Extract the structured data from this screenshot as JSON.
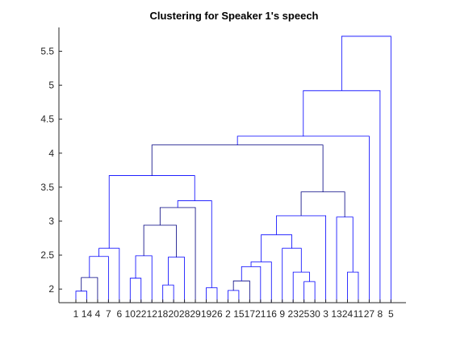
{
  "chart_data": {
    "type": "dendrogram",
    "title": "Clustering for Speaker 1's speech",
    "xlabel": "",
    "ylabel": "",
    "ylim": [
      1.8,
      5.85
    ],
    "yticks": [
      "2",
      "2.5",
      "3",
      "3.5",
      "4",
      "4.5",
      "5",
      "5.5"
    ],
    "grid": false,
    "leaf_labels": [
      "1",
      "14",
      "4",
      "7",
      "6",
      "10",
      "22",
      "12",
      "18",
      "20",
      "28",
      "29",
      "19",
      "26",
      "2",
      "15",
      "17",
      "21",
      "16",
      "9",
      "23",
      "25",
      "30",
      "3",
      "13",
      "24",
      "11",
      "27",
      "8",
      "5"
    ],
    "merges": [
      {
        "left": "leaf:1",
        "right": "leaf:14",
        "height": 1.97
      },
      {
        "left": "m0",
        "right": "leaf:4",
        "height": 2.17
      },
      {
        "left": "m1",
        "right": "leaf:7",
        "height": 2.48
      },
      {
        "left": "m2",
        "right": "leaf:6",
        "height": 2.6
      },
      {
        "left": "leaf:10",
        "right": "leaf:22",
        "height": 2.16
      },
      {
        "left": "m4",
        "right": "leaf:12",
        "height": 2.49
      },
      {
        "left": "leaf:18",
        "right": "leaf:20",
        "height": 2.06
      },
      {
        "left": "m6",
        "right": "leaf:28",
        "height": 2.47
      },
      {
        "left": "m5",
        "right": "m7",
        "height": 2.94
      },
      {
        "left": "m8",
        "right": "leaf:29",
        "height": 3.2
      },
      {
        "left": "leaf:19",
        "right": "leaf:26",
        "height": 2.02
      },
      {
        "left": "m9",
        "right": "m10",
        "height": 3.3
      },
      {
        "left": "m3",
        "right": "m11",
        "height": 3.67
      },
      {
        "left": "leaf:2",
        "right": "leaf:15",
        "height": 1.98
      },
      {
        "left": "m13",
        "right": "leaf:17",
        "height": 2.12
      },
      {
        "left": "m14",
        "right": "leaf:21",
        "height": 2.33
      },
      {
        "left": "m15",
        "right": "leaf:16",
        "height": 2.4
      },
      {
        "left": "leaf:25",
        "right": "leaf:30",
        "height": 2.11
      },
      {
        "left": "leaf:23",
        "right": "m17",
        "height": 2.25
      },
      {
        "left": "leaf:9",
        "right": "m18",
        "height": 2.6
      },
      {
        "left": "m16",
        "right": "m19",
        "height": 2.8
      },
      {
        "left": "m20",
        "right": "leaf:3",
        "height": 3.08
      },
      {
        "left": "leaf:24",
        "right": "leaf:11",
        "height": 2.25
      },
      {
        "left": "leaf:13",
        "right": "m22",
        "height": 3.06
      },
      {
        "left": "m21",
        "right": "m23",
        "height": 3.43
      },
      {
        "left": "m12",
        "right": "m24",
        "height": 4.12
      },
      {
        "left": "m25",
        "right": "leaf:27",
        "height": 4.25
      },
      {
        "left": "m26",
        "right": "leaf:8",
        "height": 4.92
      },
      {
        "left": "m27",
        "right": "leaf:5",
        "height": 5.72
      }
    ],
    "colors": {
      "link": "#0000ff",
      "dark_link": "#000080",
      "axis": "#262626"
    }
  }
}
